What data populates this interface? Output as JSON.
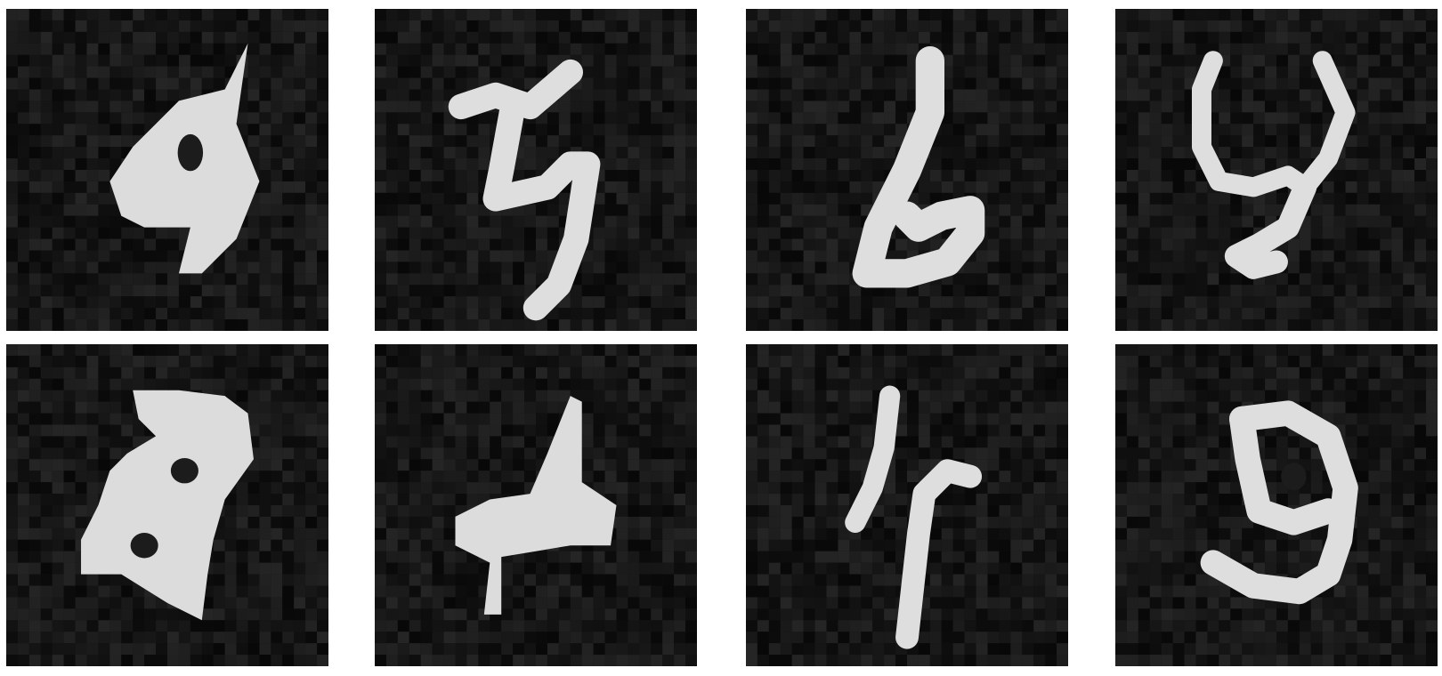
{
  "images": [
    {
      "digit_depicted": "9"
    },
    {
      "digit_depicted": "3"
    },
    {
      "digit_depicted": "6"
    },
    {
      "digit_depicted": "4"
    },
    {
      "digit_depicted": "8"
    },
    {
      "digit_depicted": "4"
    },
    {
      "digit_depicted": "4"
    },
    {
      "digit_depicted": "9"
    }
  ],
  "colors": {
    "background": "#ffffff",
    "tile_background": "#141414",
    "digit_stroke": "#dedede"
  }
}
